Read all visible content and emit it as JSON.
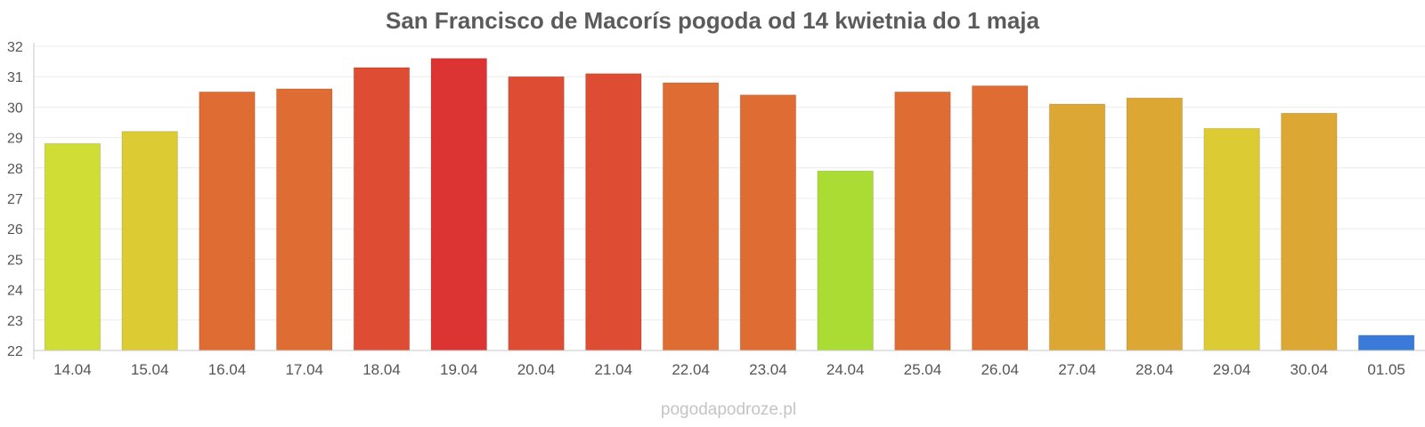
{
  "chart_data": {
    "type": "bar",
    "title": "San Francisco de Macorís pogoda od 14 kwietnia do 1 maja",
    "xlabel": "",
    "ylabel": "",
    "categories": [
      "14.04",
      "15.04",
      "16.04",
      "17.04",
      "18.04",
      "19.04",
      "20.04",
      "21.04",
      "22.04",
      "23.04",
      "24.04",
      "25.04",
      "26.04",
      "27.04",
      "28.04",
      "29.04",
      "30.04",
      "01.05"
    ],
    "values": [
      28.8,
      29.2,
      30.5,
      30.6,
      31.3,
      31.6,
      31.0,
      31.1,
      30.8,
      30.4,
      27.9,
      30.5,
      30.7,
      30.1,
      30.3,
      29.3,
      29.8,
      22.5
    ],
    "colors": [
      "#cfdd34",
      "#dccb33",
      "#de6c33",
      "#de6c33",
      "#dd4c33",
      "#dc3333",
      "#dd4c33",
      "#dd4c33",
      "#de6c33",
      "#de6c33",
      "#aadc33",
      "#de6c33",
      "#de6c33",
      "#dca833",
      "#dca833",
      "#dccb33",
      "#dca833",
      "#3a7ad9"
    ],
    "yticks": [
      22,
      23,
      24,
      25,
      26,
      27,
      28,
      29,
      30,
      31,
      32
    ],
    "ylim": [
      22,
      32
    ],
    "grid": true,
    "legend": "none"
  },
  "watermark": "pogodapodroze.pl"
}
